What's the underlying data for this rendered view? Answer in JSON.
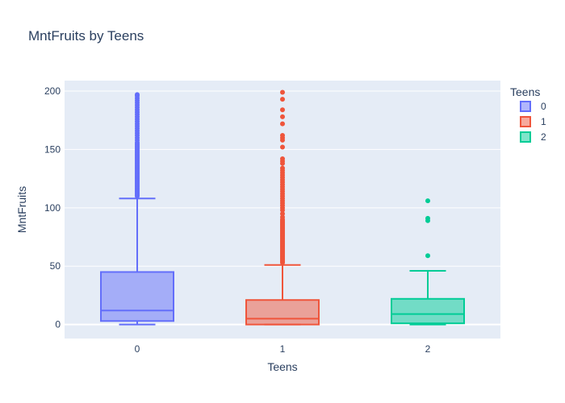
{
  "chart_data": {
    "type": "box",
    "title": "MntFruits by Teens",
    "xlabel": "Teens",
    "ylabel": "MntFruits",
    "ylim": [
      -12,
      209
    ],
    "yticks": [
      0,
      50,
      100,
      150,
      200
    ],
    "categories": [
      "0",
      "1",
      "2"
    ],
    "legend": {
      "title": "Teens",
      "placement": "right"
    },
    "series": [
      {
        "name": "0",
        "color": "#636efa",
        "q1": 3,
        "median": 12,
        "q3": 45,
        "lower_whisker": 0,
        "upper_whisker": 108,
        "outliers": [
          110,
          111,
          112,
          113,
          114,
          115,
          116,
          117,
          118,
          119,
          120,
          121,
          122,
          123,
          124,
          125,
          126,
          127,
          128,
          129,
          130,
          131,
          132,
          133,
          134,
          135,
          136,
          137,
          138,
          139,
          140,
          141,
          142,
          143,
          144,
          145,
          146,
          147,
          148,
          149,
          150,
          151,
          152,
          153,
          154,
          155,
          156,
          158,
          160,
          162,
          164,
          166,
          168,
          170,
          172,
          174,
          176,
          178,
          180,
          182,
          184,
          186,
          188,
          190,
          192,
          194,
          196,
          197
        ]
      },
      {
        "name": "1",
        "color": "#ef553b",
        "q1": 0,
        "median": 5,
        "q3": 21,
        "lower_whisker": 0,
        "upper_whisker": 51,
        "outliers": [
          53,
          54,
          55,
          56,
          57,
          58,
          59,
          60,
          61,
          62,
          63,
          64,
          65,
          66,
          67,
          68,
          69,
          70,
          71,
          72,
          73,
          74,
          75,
          76,
          77,
          78,
          79,
          80,
          81,
          82,
          83,
          84,
          85,
          86,
          87,
          88,
          89,
          90,
          92,
          95,
          98,
          100,
          102,
          104,
          106,
          108,
          110,
          112,
          114,
          116,
          118,
          120,
          122,
          124,
          126,
          128,
          130,
          132,
          134,
          138,
          140,
          142,
          152,
          158,
          160,
          162,
          172,
          178,
          184,
          193,
          199
        ]
      },
      {
        "name": "2",
        "color": "#00cc96",
        "q1": 1,
        "median": 9,
        "q3": 22,
        "lower_whisker": 0,
        "upper_whisker": 46,
        "outliers": [
          59,
          89,
          91,
          106
        ]
      }
    ]
  }
}
